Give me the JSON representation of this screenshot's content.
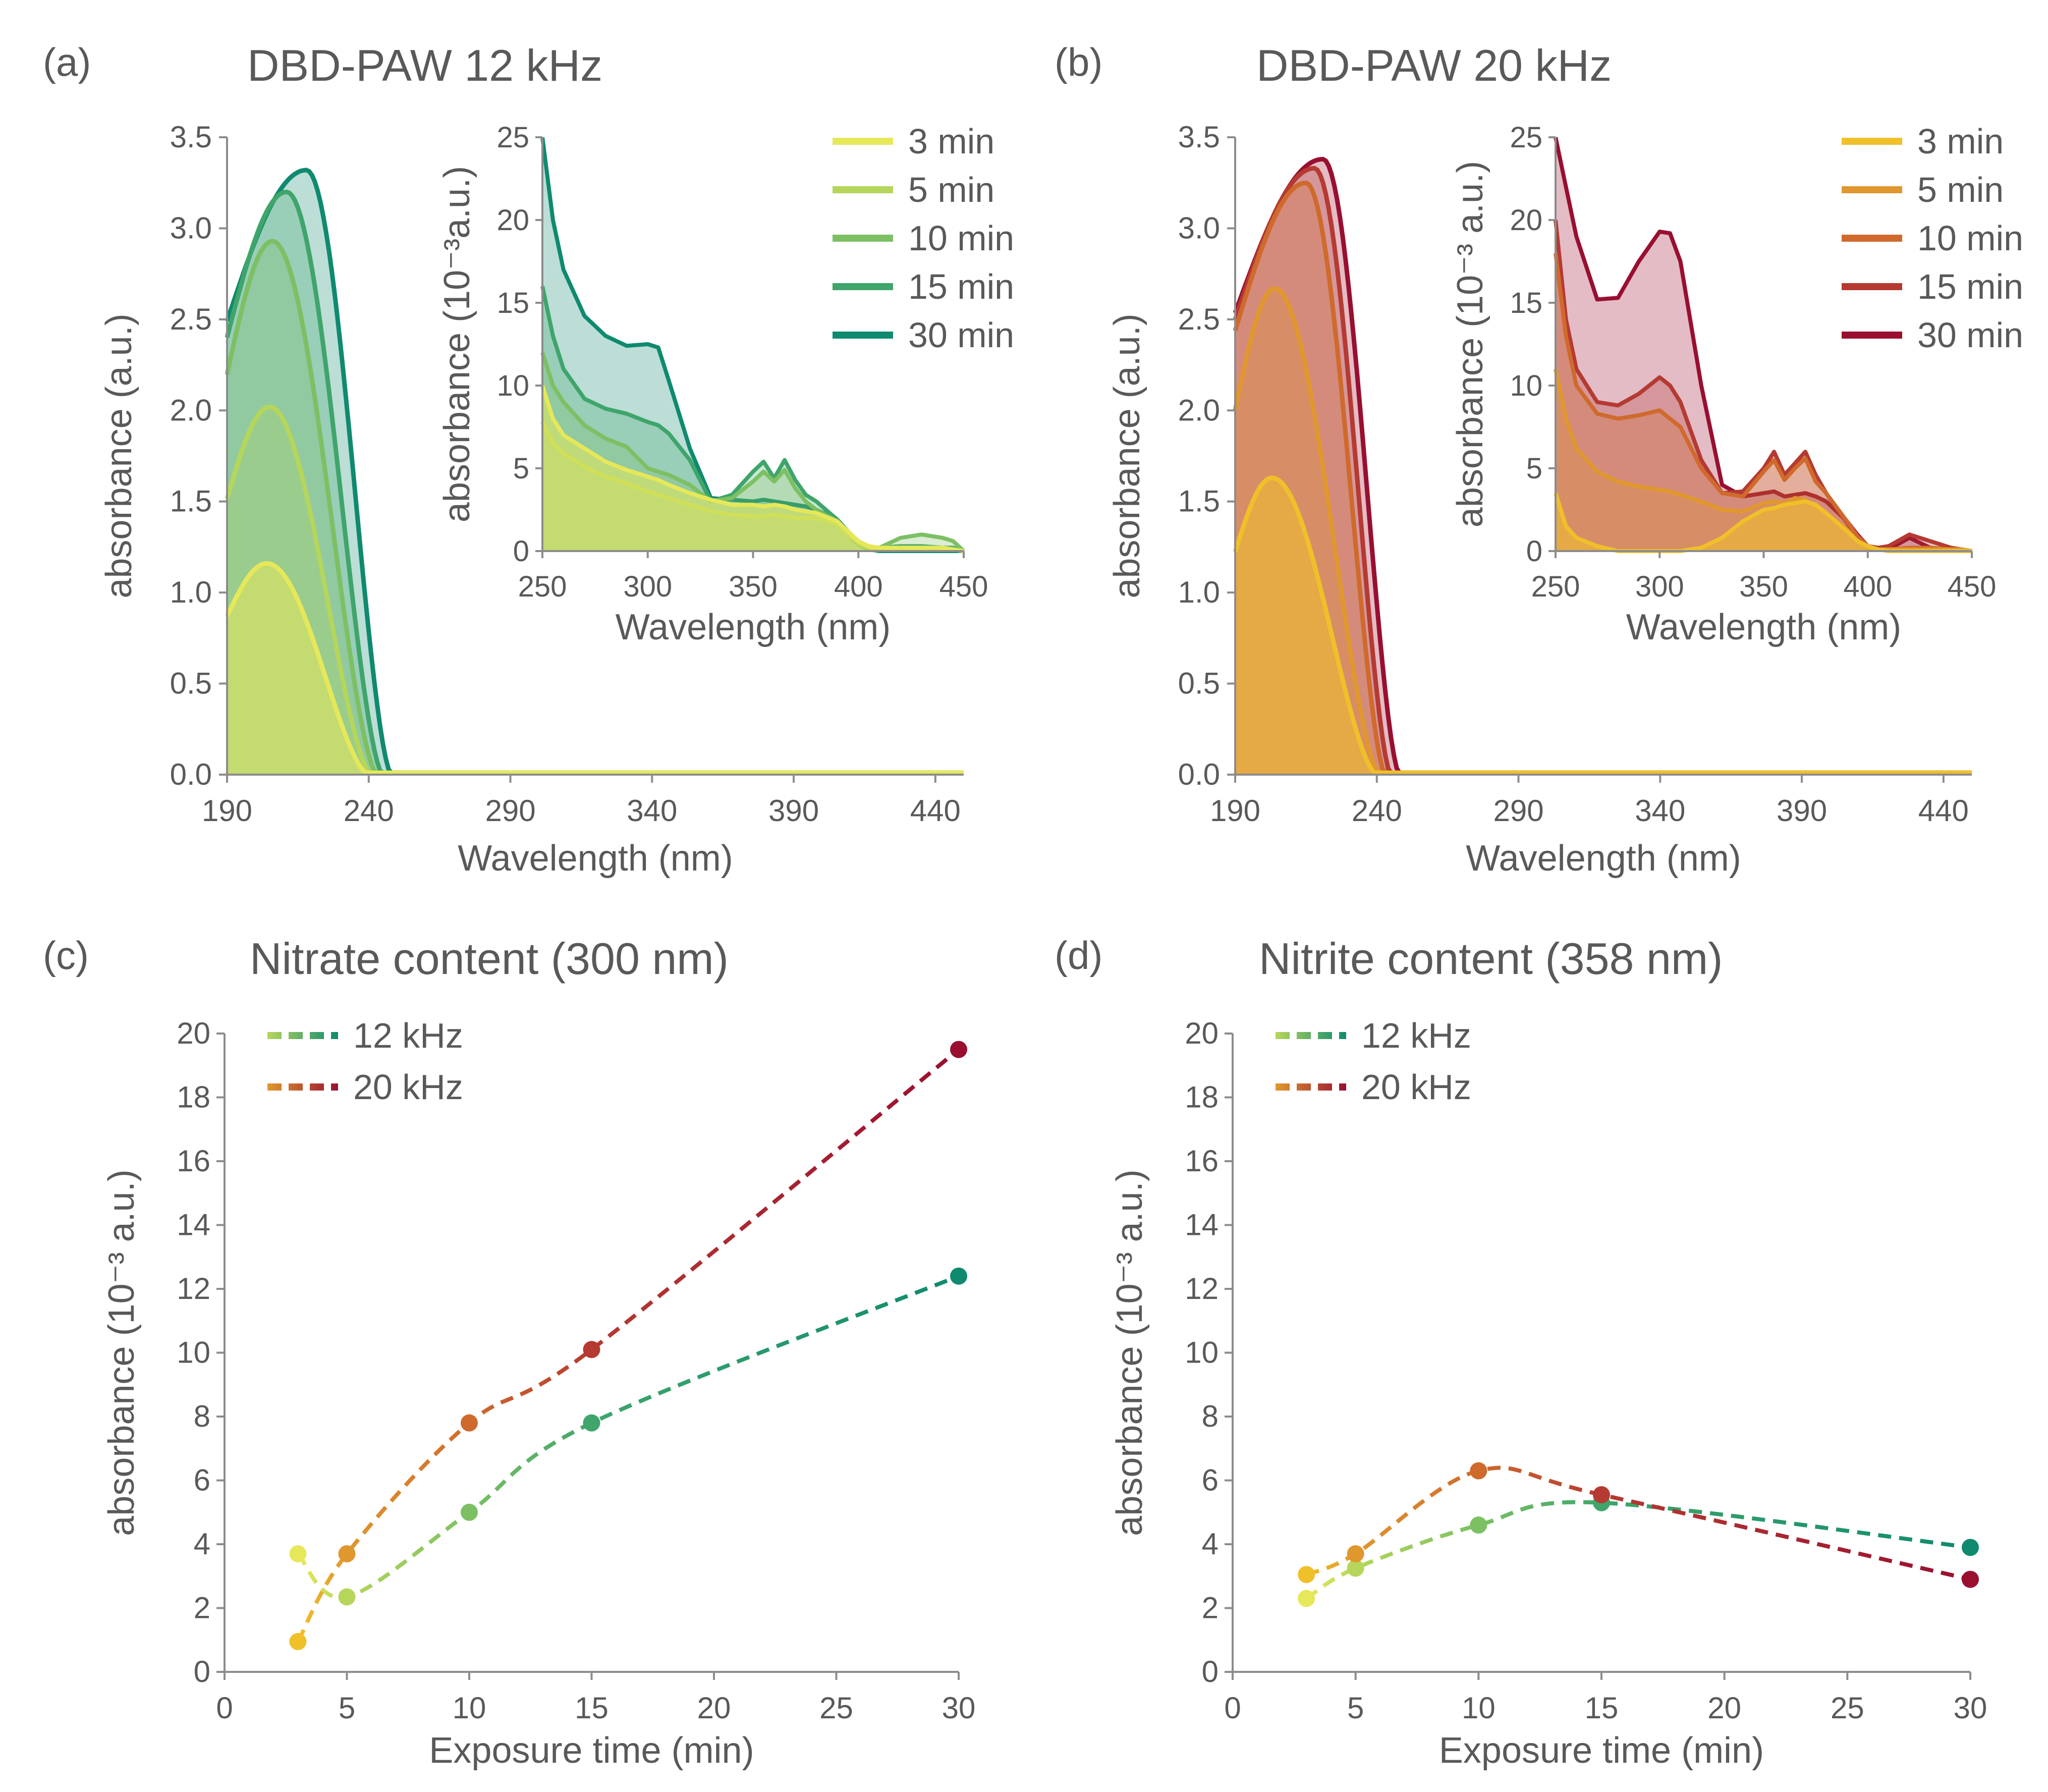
{
  "figure": {
    "panels": [
      {
        "label": "(a)",
        "title": "DBD-PAW 12 kHz"
      },
      {
        "label": "(b)",
        "title": "DBD-PAW 20 kHz"
      },
      {
        "label": "(c)",
        "title": "Nitrate content (300 nm)"
      },
      {
        "label": "(d)",
        "title": "Nitrite content (358 nm)"
      }
    ]
  },
  "chart_data": [
    {
      "id": "a",
      "type": "area",
      "title": "DBD-PAW 12 kHz",
      "xlabel": "Wavelength  (nm)",
      "ylabel": "absorbance (a.u.)",
      "xlim": [
        190,
        450
      ],
      "ylim": [
        0,
        3.5
      ],
      "xticks": [
        190,
        240,
        290,
        340,
        390,
        440
      ],
      "yticks": [
        "0.0",
        "0.5",
        "1.0",
        "1.5",
        "2.0",
        "2.5",
        "3.0",
        "3.5"
      ],
      "legend_position": "top-right",
      "series": [
        {
          "name": "3 min",
          "color": "#E6E85A",
          "peak_x": 204,
          "peak_y": 1.16
        },
        {
          "name": "5 min",
          "color": "#B5D65A",
          "peak_x": 205,
          "peak_y": 2.02
        },
        {
          "name": "10 min",
          "color": "#7CC063",
          "peak_x": 206,
          "peak_y": 2.93
        },
        {
          "name": "15 min",
          "color": "#3FA56B",
          "peak_x": 211,
          "peak_y": 3.2
        },
        {
          "name": "30 min",
          "color": "#0F8A6E",
          "peak_x": 218,
          "peak_y": 3.32
        }
      ],
      "inset": {
        "xlabel": "Wavelength  (nm)",
        "ylabel": "absorbance (10⁻³a.u.)",
        "xlim": [
          250,
          450
        ],
        "ylim": [
          0,
          25
        ],
        "xticks": [
          250,
          300,
          350,
          400,
          450
        ],
        "yticks": [
          0,
          5,
          10,
          15,
          20,
          25
        ],
        "x": [
          250,
          255,
          260,
          270,
          280,
          290,
          300,
          305,
          310,
          320,
          330,
          340,
          350,
          355,
          360,
          365,
          370,
          375,
          380,
          390,
          395,
          400,
          405,
          410,
          420,
          430,
          440,
          445,
          450
        ],
        "series": [
          {
            "name": "3 min",
            "values": [
              10,
              8,
              7,
              6.2,
              5.4,
              4.9,
              4.5,
              4.3,
              4,
              3.5,
              3.1,
              2.8,
              2.8,
              2.7,
              2.8,
              2.7,
              2.5,
              2.4,
              2.3,
              1.8,
              1.2,
              0.6,
              0.3,
              0.2,
              0.2,
              0.2,
              0.2,
              0.1,
              0
            ]
          },
          {
            "name": "5 min",
            "values": [
              7.8,
              6.5,
              5.9,
              5.1,
              4.5,
              4.1,
              3.6,
              3.4,
              3.2,
              2.8,
              2.4,
              2.2,
              2.1,
              2.1,
              2.2,
              2.1,
              2,
              2,
              2,
              1.6,
              1,
              0.5,
              0.2,
              0.1,
              0.1,
              0.1,
              0.1,
              0.1,
              0
            ]
          },
          {
            "name": "10 min",
            "values": [
              12,
              10,
              9,
              7.6,
              6.8,
              6.3,
              5,
              4.8,
              4.6,
              4,
              3,
              3.2,
              4.2,
              4.8,
              4.2,
              4.9,
              3.8,
              3,
              2.5,
              1.8,
              1.1,
              0.5,
              0.2,
              0.2,
              0.8,
              1,
              0.8,
              0.6,
              0
            ]
          },
          {
            "name": "15 min",
            "values": [
              16,
              13,
              11,
              9.2,
              8.6,
              8.3,
              7.8,
              7.6,
              7.1,
              5.5,
              3,
              3.4,
              4.8,
              5.4,
              4.4,
              5.5,
              4.3,
              3.4,
              3,
              1.9,
              1,
              0.4,
              0.2,
              0.2,
              0.3,
              0.3,
              0.2,
              0.2,
              0
            ]
          },
          {
            "name": "30 min",
            "values": [
              25,
              20,
              17,
              14.2,
              13,
              12.4,
              12.5,
              12.3,
              10.3,
              6.2,
              3.2,
              3.1,
              3,
              3.1,
              3,
              2.9,
              2.8,
              2.7,
              2.5,
              1.9,
              1.2,
              0.4,
              0.1,
              0,
              0,
              0,
              0,
              0,
              0
            ]
          }
        ]
      }
    },
    {
      "id": "b",
      "type": "area",
      "title": "DBD-PAW 20 kHz",
      "xlabel": "Wavelength  (nm)",
      "ylabel": "absorbance (a.u.)",
      "xlim": [
        190,
        450
      ],
      "ylim": [
        0,
        3.5
      ],
      "xticks": [
        190,
        240,
        290,
        340,
        390,
        440
      ],
      "yticks": [
        "0.0",
        "0.5",
        "1.0",
        "1.5",
        "2.0",
        "2.5",
        "3.0",
        "3.5"
      ],
      "legend_position": "top-right",
      "series": [
        {
          "name": "3 min",
          "color": "#F0C02A",
          "peak_x": 203,
          "peak_y": 1.63
        },
        {
          "name": "5 min",
          "color": "#E0972E",
          "peak_x": 204,
          "peak_y": 2.67
        },
        {
          "name": "10 min",
          "color": "#CF6A2C",
          "peak_x": 215,
          "peak_y": 3.25
        },
        {
          "name": "15 min",
          "color": "#B53A32",
          "peak_x": 218,
          "peak_y": 3.33
        },
        {
          "name": "30 min",
          "color": "#990F30",
          "peak_x": 221,
          "peak_y": 3.38
        }
      ],
      "inset": {
        "xlabel": "Wavelength  (nm)",
        "ylabel": "absorbance (10⁻³ a.u.)",
        "xlim": [
          250,
          450
        ],
        "ylim": [
          0,
          25
        ],
        "xticks": [
          250,
          300,
          350,
          400,
          450
        ],
        "yticks": [
          0,
          5,
          10,
          15,
          20,
          25
        ],
        "x": [
          250,
          255,
          260,
          270,
          280,
          290,
          300,
          305,
          310,
          320,
          330,
          340,
          350,
          355,
          360,
          365,
          370,
          375,
          380,
          390,
          395,
          400,
          405,
          410,
          420,
          430,
          440,
          445,
          450
        ],
        "series": [
          {
            "name": "3 min",
            "values": [
              3.5,
              1.5,
              0.8,
              0.3,
              0,
              0,
              0,
              0,
              0,
              0.2,
              0.8,
              1.8,
              2.5,
              2.6,
              2.8,
              2.9,
              3,
              2.8,
              2.3,
              1.2,
              0.6,
              0.3,
              0.1,
              0,
              0,
              0,
              0,
              0,
              0
            ]
          },
          {
            "name": "5 min",
            "values": [
              11,
              8,
              6.2,
              4.8,
              4.2,
              3.9,
              3.7,
              3.6,
              3.4,
              3,
              2.5,
              2.4,
              2.9,
              3,
              2.9,
              3.2,
              3.1,
              2.7,
              2.3,
              1.3,
              0.6,
              0.2,
              0.1,
              0.1,
              0.1,
              0.1,
              0.1,
              0.1,
              0
            ]
          },
          {
            "name": "10 min",
            "values": [
              18,
              13,
              10,
              8.3,
              8,
              8.2,
              8.5,
              8,
              7.5,
              5,
              3.5,
              3.3,
              4.8,
              5.5,
              4.3,
              5,
              5.6,
              4.2,
              3.5,
              1.8,
              0.9,
              0.3,
              0.1,
              0.1,
              0.2,
              0.2,
              0.1,
              0.1,
              0
            ]
          },
          {
            "name": "15 min",
            "values": [
              20,
              14,
              11,
              9,
              8.8,
              9.5,
              10.5,
              10,
              9,
              5.5,
              3.5,
              3.6,
              5,
              6,
              4.6,
              5.3,
              6,
              4.6,
              3.5,
              1.7,
              0.8,
              0.3,
              0.2,
              0.3,
              1,
              0.6,
              0.2,
              0.1,
              0
            ]
          },
          {
            "name": "30 min",
            "values": [
              25,
              22,
              19,
              15.2,
              15.3,
              17.5,
              19.3,
              19.2,
              17.5,
              10,
              4,
              3.3,
              3.5,
              3.6,
              3.3,
              3.4,
              3.5,
              3.3,
              3,
              1.8,
              1,
              0.3,
              0.1,
              0.1,
              0.8,
              0.2,
              0.1,
              0.1,
              0
            ]
          }
        ]
      }
    },
    {
      "id": "c",
      "type": "line",
      "title": "Nitrate content (300 nm)",
      "xlabel": "Exposure time (min)",
      "ylabel": "absorbance (10⁻³ a.u.)",
      "xlim": [
        0,
        30
      ],
      "ylim": [
        0,
        20
      ],
      "xticks": [
        0,
        5,
        10,
        15,
        20,
        25,
        30
      ],
      "yticks": [
        0,
        2,
        4,
        6,
        8,
        10,
        12,
        14,
        16,
        18,
        20
      ],
      "legend_position": "top-left",
      "series": [
        {
          "name": "12 kHz",
          "x": [
            3,
            5,
            10,
            15,
            30
          ],
          "values": [
            3.7,
            2.35,
            5.0,
            7.8,
            12.4
          ],
          "colors": [
            "#E6E85A",
            "#B5D65A",
            "#7CC063",
            "#3FA56B",
            "#0F8A6E"
          ]
        },
        {
          "name": "20 kHz",
          "x": [
            3,
            5,
            10,
            15,
            30
          ],
          "values": [
            0.95,
            3.7,
            7.8,
            10.1,
            19.5
          ],
          "colors": [
            "#F0C02A",
            "#E0972E",
            "#CF6A2C",
            "#B53A32",
            "#990F30"
          ]
        }
      ]
    },
    {
      "id": "d",
      "type": "line",
      "title": "Nitrite content (358 nm)",
      "xlabel": "Exposure time (min)",
      "ylabel": "absorbance (10⁻³ a.u.)",
      "xlim": [
        0,
        30
      ],
      "ylim": [
        0,
        20
      ],
      "xticks": [
        0,
        5,
        10,
        15,
        20,
        25,
        30
      ],
      "yticks": [
        0,
        2,
        4,
        6,
        8,
        10,
        12,
        14,
        16,
        18,
        20
      ],
      "legend_position": "top-left",
      "series": [
        {
          "name": "12 kHz",
          "x": [
            3,
            5,
            10,
            15,
            30
          ],
          "values": [
            2.3,
            3.25,
            4.6,
            5.3,
            3.9
          ],
          "colors": [
            "#E6E85A",
            "#B5D65A",
            "#7CC063",
            "#3FA56B",
            "#0F8A6E"
          ]
        },
        {
          "name": "20 kHz",
          "x": [
            3,
            5,
            10,
            15,
            30
          ],
          "values": [
            3.05,
            3.7,
            6.3,
            5.55,
            2.9
          ],
          "colors": [
            "#F0C02A",
            "#E0972E",
            "#CF6A2C",
            "#B53A32",
            "#990F30"
          ]
        }
      ]
    }
  ]
}
